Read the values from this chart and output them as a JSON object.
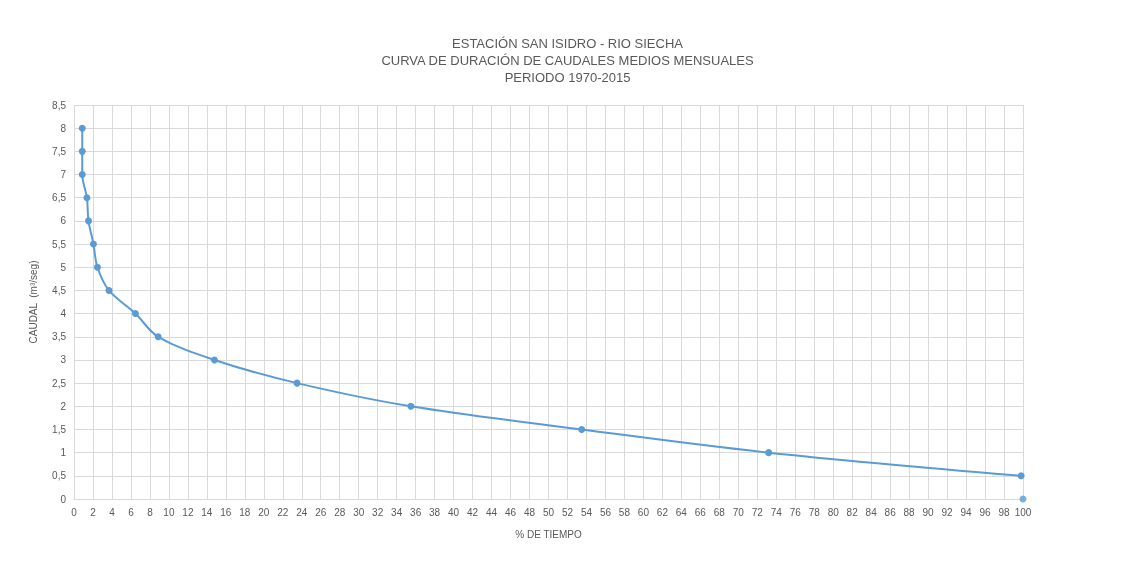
{
  "chart_data": {
    "type": "line",
    "title": "ESTACIÓN SAN ISIDRO - RIO SIECHA\nCURVA DE DURACIÓN DE CAUDALES MEDIOS MENSUALES\nPERIODO 1970-2015",
    "xlabel": "% DE TIEMPO",
    "ylabel": "CAUDAL  (m³/seg)",
    "color": "#5b9bd5",
    "marker": "circle",
    "grid": true,
    "xlim": [
      0,
      100
    ],
    "xticks": [
      0,
      2,
      4,
      6,
      8,
      10,
      12,
      14,
      16,
      18,
      20,
      22,
      24,
      26,
      28,
      30,
      32,
      34,
      36,
      38,
      40,
      42,
      44,
      46,
      48,
      50,
      52,
      54,
      56,
      58,
      60,
      62,
      64,
      66,
      68,
      70,
      72,
      74,
      76,
      78,
      80,
      82,
      84,
      86,
      88,
      90,
      92,
      94,
      96,
      98,
      100
    ],
    "ylim": [
      0,
      8.5
    ],
    "yticks": [
      0,
      {
        "value": 0.5,
        "label": "0,5"
      },
      1,
      {
        "value": 1.5,
        "label": "1,5"
      },
      2,
      {
        "value": 2.5,
        "label": "2,5"
      },
      3,
      {
        "value": 3.5,
        "label": "3,5"
      },
      4,
      {
        "value": 4.5,
        "label": "4,5"
      },
      5,
      {
        "value": 5.5,
        "label": "5,5"
      },
      6,
      {
        "value": 6.5,
        "label": "6,5"
      },
      7,
      {
        "value": 7.5,
        "label": "7,5"
      },
      8,
      {
        "value": 8.5,
        "label": "8,5"
      }
    ],
    "series": [
      {
        "x": [
          0.87,
          0.87,
          0.87,
          1.36,
          1.53,
          2.05,
          2.47,
          3.69,
          6.47,
          8.87,
          14.8,
          23.5,
          35.5,
          53.5,
          73.2,
          99.8
        ],
        "values": [
          8,
          7.5,
          7,
          6.5,
          6,
          5.5,
          5,
          4.5,
          4,
          3.5,
          3,
          2.5,
          2,
          1.5,
          1,
          0.5
        ]
      },
      {
        "type": "scatter",
        "x": [
          100
        ],
        "values": [
          0
        ]
      }
    ]
  }
}
